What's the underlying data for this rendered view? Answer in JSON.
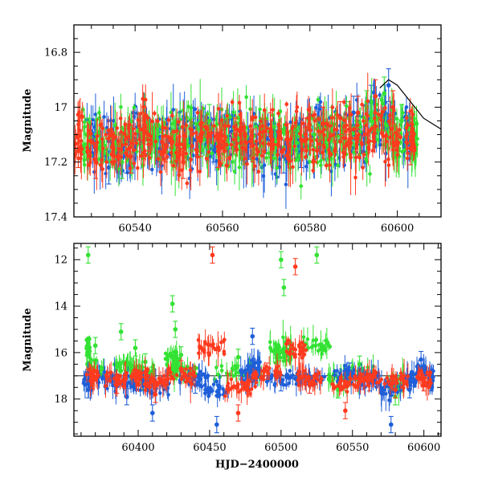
{
  "figure": {
    "colors": {
      "blue": "#1f5fd8",
      "green": "#33e233",
      "red": "#ff3a1e",
      "frame": "#000000"
    }
  },
  "chart_data": [
    {
      "type": "scatter",
      "panel": "top",
      "title": "",
      "xlabel": "",
      "ylabel": "Magnitude",
      "xlim": [
        60526,
        60610
      ],
      "ylim": [
        17.4,
        16.7
      ],
      "y_inverted": true,
      "xticks": [
        60540,
        60560,
        60580,
        60600
      ],
      "yticks": [
        16.8,
        17,
        17.2,
        17.4
      ],
      "ytick_labels": [
        "16.8",
        "17",
        "17.2",
        "17.4"
      ],
      "grid": false,
      "error_bars": true,
      "series": [
        {
          "color": "blue",
          "x": [
            60530,
            60534,
            60538,
            60542,
            60546,
            60550,
            60554,
            60558,
            60562,
            60566,
            60570,
            60574,
            60578,
            60582,
            60586,
            60590,
            60594,
            60598,
            60602
          ],
          "y": [
            17.12,
            17.22,
            17.18,
            17.1,
            17.15,
            17.08,
            17.12,
            17.14,
            17.09,
            17.13,
            17.11,
            17.18,
            17.16,
            17.05,
            17.1,
            17.02,
            16.98,
            16.92,
            17.08
          ]
        },
        {
          "color": "green",
          "x": [
            60529,
            60533,
            60537,
            60541,
            60545,
            60549,
            60553,
            60557,
            60561,
            60565,
            60569,
            60573,
            60577,
            60581,
            60585,
            60589,
            60593,
            60597,
            60601,
            60604
          ],
          "y": [
            17.1,
            17.14,
            17.2,
            17.08,
            17.12,
            17.16,
            17.1,
            17.05,
            17.12,
            17.15,
            17.1,
            17.08,
            17.13,
            17.1,
            17.06,
            17.04,
            17.0,
            16.95,
            17.05,
            17.1
          ]
        },
        {
          "color": "red",
          "x": [
            60527,
            60531,
            60535,
            60539,
            60543,
            60547,
            60551,
            60555,
            60559,
            60563,
            60567,
            60571,
            60575,
            60579,
            60583,
            60587,
            60591,
            60595,
            60599,
            60603
          ],
          "y": [
            17.16,
            17.2,
            17.15,
            17.18,
            17.1,
            17.14,
            17.2,
            17.12,
            17.16,
            17.1,
            17.14,
            17.08,
            17.12,
            17.1,
            17.06,
            17.04,
            17.02,
            16.96,
            17.0,
            17.15
          ]
        }
      ],
      "model_curve": {
        "color": "frame",
        "x": [
          60596,
          60598,
          60600,
          60602,
          60604,
          60606,
          60608,
          60610
        ],
        "y": [
          16.93,
          16.9,
          16.92,
          16.96,
          17.0,
          17.04,
          17.06,
          17.08
        ]
      }
    },
    {
      "type": "scatter",
      "panel": "bottom",
      "title": "",
      "xlabel": "HJD−2400000",
      "ylabel": "Magnitude",
      "xlim": [
        60355,
        60612
      ],
      "ylim": [
        19.6,
        11.3
      ],
      "y_inverted": true,
      "xticks": [
        60400,
        60450,
        60500,
        60550,
        60600
      ],
      "yticks": [
        12,
        14,
        16,
        18
      ],
      "grid": false,
      "error_bars": true,
      "reference_line": 17.0,
      "series": [
        {
          "color": "blue",
          "x": [
            60365,
            60378,
            60392,
            60410,
            60440,
            60455,
            60478,
            60480,
            60500,
            60520,
            60548,
            60562,
            60577,
            60590,
            60598,
            60605
          ],
          "y": [
            17.6,
            17.2,
            17.9,
            18.6,
            17.4,
            19.1,
            17.2,
            15.3,
            17.3,
            17.4,
            16.8,
            17.3,
            19.1,
            17.6,
            16.3,
            17.3
          ]
        },
        {
          "color": "green",
          "x": [
            60365,
            60370,
            60388,
            60398,
            60405,
            60424,
            60426,
            60430,
            60470,
            60500,
            60502,
            60525,
            60540,
            60555,
            60580
          ],
          "y": [
            11.8,
            15.7,
            15.1,
            15.8,
            16.4,
            13.9,
            15.0,
            16.1,
            16.2,
            12.0,
            13.2,
            11.8,
            17.6,
            16.5,
            17.9
          ]
        },
        {
          "color": "red",
          "x": [
            60368,
            60385,
            60400,
            60412,
            60430,
            60452,
            60470,
            60490,
            60510,
            60520,
            60545,
            60560,
            60580,
            60600
          ],
          "y": [
            17.2,
            17.4,
            17.1,
            17.8,
            16.7,
            11.8,
            18.6,
            16.8,
            12.3,
            17.4,
            18.5,
            17.1,
            17.6,
            17.3
          ]
        }
      ]
    }
  ]
}
